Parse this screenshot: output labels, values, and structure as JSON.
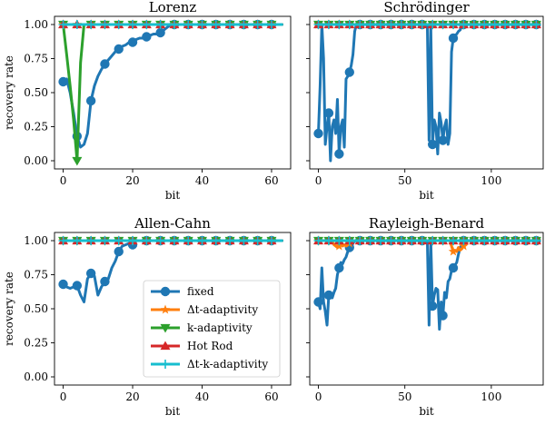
{
  "legend_panel": 2,
  "chart_data": [
    {
      "type": "line",
      "title": "Lorenz",
      "xlabel": "bit",
      "ylabel": "recovery rate",
      "xlim": [
        -2.5,
        65.5
      ],
      "ylim": [
        -0.06,
        1.06
      ],
      "xticks": [
        0,
        20,
        40,
        60
      ],
      "yticks": [
        0.0,
        0.25,
        0.5,
        0.75,
        1.0
      ],
      "ytick_labels": [
        "0.00",
        "0.25",
        "0.50",
        "0.75",
        "1.00"
      ],
      "xmax_bit": 63,
      "marker_every": 4,
      "series": [
        {
          "name": "fixed",
          "color": "#1f77b4",
          "marker": "circle",
          "x": [
            0,
            1,
            2,
            3,
            4,
            5,
            6,
            7,
            8,
            9,
            10,
            11,
            12,
            13,
            14,
            15,
            16,
            17,
            18,
            19,
            20,
            21,
            22,
            23,
            24,
            25,
            26,
            27,
            28,
            29,
            30,
            31,
            32,
            63
          ],
          "y": [
            0.58,
            0.6,
            0.5,
            0.35,
            0.18,
            0.1,
            0.12,
            0.2,
            0.44,
            0.55,
            0.62,
            0.67,
            0.71,
            0.74,
            0.77,
            0.8,
            0.82,
            0.84,
            0.85,
            0.87,
            0.87,
            0.89,
            0.9,
            0.9,
            0.91,
            0.92,
            0.93,
            0.93,
            0.94,
            0.96,
            0.98,
            1.0,
            1.0,
            1.0
          ]
        },
        {
          "name": "k-adaptivity",
          "color": "#2ca02c",
          "marker": "triangle-down",
          "x": [
            0,
            1,
            2,
            3,
            4,
            5,
            6,
            7,
            63
          ],
          "y": [
            1.0,
            0.78,
            0.55,
            0.3,
            0.0,
            0.72,
            1.0,
            1.0,
            1.0
          ]
        },
        {
          "name": "Δt-adaptivity",
          "color": "#ff7f0e",
          "marker": "star",
          "x": [
            0,
            63
          ],
          "y": [
            1.0,
            1.0
          ]
        },
        {
          "name": "Hot Rod",
          "color": "#d62728",
          "marker": "triangle-up",
          "x": [
            0,
            63
          ],
          "y": [
            1.0,
            1.0
          ]
        },
        {
          "name": "Δt-k-adaptivity",
          "color": "#17becf",
          "marker": "plus",
          "x": [
            0,
            63
          ],
          "y": [
            1.0,
            1.0
          ]
        }
      ]
    },
    {
      "type": "line",
      "title": "Schrödinger",
      "xlabel": "bit",
      "ylabel": "",
      "xlim": [
        -5,
        130
      ],
      "ylim": [
        -0.06,
        1.06
      ],
      "xticks": [
        0,
        50,
        100
      ],
      "yticks": [
        0.0,
        0.25,
        0.5,
        0.75,
        1.0
      ],
      "ytick_labels": [
        "",
        "",
        "",
        "",
        ""
      ],
      "xmax_bit": 127,
      "marker_every": 6,
      "series": [
        {
          "name": "fixed",
          "color": "#1f77b4",
          "marker": "circle",
          "x": [
            0,
            1,
            2,
            3,
            4,
            5,
            6,
            7,
            8,
            9,
            10,
            11,
            12,
            13,
            14,
            15,
            16,
            17,
            18,
            19,
            20,
            21,
            22,
            62,
            63,
            64,
            65,
            66,
            67,
            68,
            69,
            70,
            71,
            72,
            73,
            74,
            75,
            76,
            77,
            78,
            79,
            80,
            81,
            82,
            83,
            84,
            85,
            127
          ],
          "y": [
            0.2,
            0.55,
            1.0,
            0.75,
            0.12,
            0.25,
            0.35,
            0.0,
            0.25,
            0.3,
            0.2,
            0.45,
            0.05,
            0.25,
            0.3,
            0.1,
            0.6,
            0.62,
            0.65,
            0.7,
            0.78,
            0.95,
            1.0,
            1.0,
            1.0,
            0.15,
            1.0,
            0.12,
            0.3,
            0.25,
            0.05,
            0.35,
            0.28,
            0.15,
            0.25,
            0.3,
            0.12,
            0.2,
            0.8,
            0.9,
            0.92,
            0.93,
            0.95,
            0.96,
            1.0,
            1.0,
            1.0,
            1.0
          ]
        },
        {
          "name": "Δt-adaptivity",
          "color": "#ff7f0e",
          "marker": "star",
          "x": [
            0,
            127
          ],
          "y": [
            1.0,
            1.0
          ]
        },
        {
          "name": "k-adaptivity",
          "color": "#2ca02c",
          "marker": "triangle-down",
          "x": [
            0,
            127
          ],
          "y": [
            1.0,
            1.0
          ]
        },
        {
          "name": "Hot Rod",
          "color": "#d62728",
          "marker": "triangle-up",
          "x": [
            0,
            127
          ],
          "y": [
            1.0,
            1.0
          ]
        },
        {
          "name": "Δt-k-adaptivity",
          "color": "#17becf",
          "marker": "plus",
          "x": [
            0,
            127
          ],
          "y": [
            1.0,
            1.0
          ]
        }
      ]
    },
    {
      "type": "line",
      "title": "Allen-Cahn",
      "xlabel": "bit",
      "ylabel": "recovery rate",
      "xlim": [
        -2.5,
        65.5
      ],
      "ylim": [
        -0.06,
        1.06
      ],
      "xticks": [
        0,
        20,
        40,
        60
      ],
      "yticks": [
        0.0,
        0.25,
        0.5,
        0.75,
        1.0
      ],
      "ytick_labels": [
        "0.00",
        "0.25",
        "0.50",
        "0.75",
        "1.00"
      ],
      "xmax_bit": 63,
      "marker_every": 4,
      "series": [
        {
          "name": "fixed",
          "color": "#1f77b4",
          "marker": "circle",
          "x": [
            0,
            1,
            2,
            3,
            4,
            5,
            6,
            7,
            8,
            9,
            10,
            11,
            12,
            13,
            14,
            15,
            16,
            17,
            18,
            19,
            20,
            21,
            22,
            63
          ],
          "y": [
            0.68,
            0.66,
            0.65,
            0.66,
            0.67,
            0.6,
            0.55,
            0.72,
            0.76,
            0.74,
            0.6,
            0.66,
            0.7,
            0.72,
            0.8,
            0.85,
            0.92,
            0.96,
            0.97,
            0.98,
            0.97,
            1.0,
            1.0,
            1.0
          ]
        },
        {
          "name": "Δt-adaptivity",
          "color": "#ff7f0e",
          "marker": "star",
          "x": [
            0,
            63
          ],
          "y": [
            1.0,
            1.0
          ]
        },
        {
          "name": "k-adaptivity",
          "color": "#2ca02c",
          "marker": "triangle-down",
          "x": [
            0,
            63
          ],
          "y": [
            1.0,
            1.0
          ]
        },
        {
          "name": "Hot Rod",
          "color": "#d62728",
          "marker": "triangle-up",
          "x": [
            0,
            63
          ],
          "y": [
            1.0,
            1.0
          ]
        },
        {
          "name": "Δt-k-adaptivity",
          "color": "#17becf",
          "marker": "plus",
          "x": [
            0,
            63
          ],
          "y": [
            1.0,
            1.0
          ]
        }
      ]
    },
    {
      "type": "line",
      "title": "Rayleigh-Benard",
      "xlabel": "bit",
      "ylabel": "",
      "xlim": [
        -5,
        130
      ],
      "ylim": [
        -0.06,
        1.06
      ],
      "xticks": [
        0,
        50,
        100
      ],
      "yticks": [
        0.0,
        0.25,
        0.5,
        0.75,
        1.0
      ],
      "ytick_labels": [
        "",
        "",
        "",
        "",
        ""
      ],
      "xmax_bit": 127,
      "marker_every": 6,
      "series": [
        {
          "name": "fixed",
          "color": "#1f77b4",
          "marker": "circle",
          "x": [
            0,
            1,
            2,
            3,
            4,
            5,
            6,
            7,
            8,
            9,
            10,
            11,
            12,
            13,
            14,
            15,
            16,
            17,
            18,
            19,
            20,
            21,
            22,
            62,
            63,
            64,
            65,
            66,
            67,
            68,
            69,
            70,
            71,
            72,
            73,
            74,
            75,
            76,
            77,
            78,
            79,
            80,
            81,
            82,
            83,
            84,
            85,
            127
          ],
          "y": [
            0.55,
            0.5,
            0.8,
            0.55,
            0.48,
            0.38,
            0.6,
            0.62,
            0.58,
            0.62,
            0.65,
            0.75,
            0.8,
            0.84,
            0.83,
            0.86,
            0.88,
            0.92,
            0.95,
            0.96,
            0.98,
            1.0,
            1.0,
            1.0,
            1.0,
            0.38,
            1.0,
            0.52,
            0.6,
            0.65,
            0.64,
            0.35,
            0.55,
            0.45,
            0.62,
            0.58,
            0.7,
            0.72,
            0.78,
            0.8,
            0.82,
            0.84,
            0.9,
            0.95,
            0.97,
            1.0,
            1.0,
            1.0
          ]
        },
        {
          "name": "Δt-adaptivity",
          "color": "#ff7f0e",
          "marker": "star",
          "x": [
            0,
            8,
            9,
            10,
            11,
            12,
            13,
            14,
            15,
            16,
            17,
            18,
            19,
            20,
            76,
            77,
            78,
            79,
            80,
            81,
            82,
            83,
            84,
            85,
            86,
            87,
            127
          ],
          "y": [
            1.0,
            1.0,
            0.97,
            0.96,
            0.95,
            0.96,
            0.97,
            0.96,
            0.97,
            0.96,
            0.97,
            0.98,
            0.99,
            1.0,
            1.0,
            0.96,
            0.92,
            0.93,
            0.92,
            0.95,
            0.93,
            0.94,
            0.96,
            0.97,
            0.99,
            1.0,
            1.0
          ]
        },
        {
          "name": "k-adaptivity",
          "color": "#2ca02c",
          "marker": "triangle-down",
          "x": [
            0,
            127
          ],
          "y": [
            1.0,
            1.0
          ]
        },
        {
          "name": "Hot Rod",
          "color": "#d62728",
          "marker": "triangle-up",
          "x": [
            0,
            127
          ],
          "y": [
            1.0,
            1.0
          ]
        },
        {
          "name": "Δt-k-adaptivity",
          "color": "#17becf",
          "marker": "plus",
          "x": [
            0,
            127
          ],
          "y": [
            1.0,
            1.0
          ]
        }
      ]
    }
  ],
  "legend": [
    {
      "label": "fixed",
      "color": "#1f77b4",
      "marker": "circle"
    },
    {
      "label": "Δt-adaptivity",
      "color": "#ff7f0e",
      "marker": "star"
    },
    {
      "label": "k-adaptivity",
      "color": "#2ca02c",
      "marker": "triangle-down"
    },
    {
      "label": "Hot Rod",
      "color": "#d62728",
      "marker": "triangle-up"
    },
    {
      "label": "Δt-k-adaptivity",
      "color": "#17becf",
      "marker": "plus"
    }
  ]
}
